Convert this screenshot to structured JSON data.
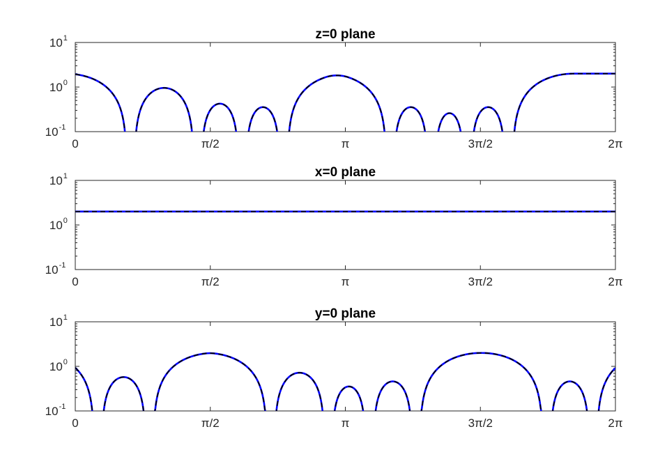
{
  "chart_data": [
    {
      "type": "line",
      "title": "z=0 plane",
      "xlim": [
        0,
        6.283185307
      ],
      "xticks": [
        0,
        1.570796327,
        3.141592654,
        4.71238898,
        6.283185307
      ],
      "xtick_labels": [
        "0",
        "π/2",
        "π",
        "3π/2",
        "2π"
      ],
      "ylim": [
        0.1,
        10
      ],
      "yscale": "log",
      "ytick_labels": [
        {
          "base": "10",
          "exp": "1"
        },
        {
          "base": "10",
          "exp": "0"
        },
        {
          "base": "10",
          "exp": "-1"
        }
      ],
      "grid": false,
      "legend": "none",
      "series": [
        {
          "style": "solid",
          "color": "#0000ff",
          "peak": 2.0,
          "zeros": [
            0.6,
            0.6855,
            1.38,
            1.465,
            1.9,
            1.985,
            2.38,
            2.465,
            3.62,
            3.705,
            4.1,
            4.185,
            4.52,
            4.605,
            5.0,
            5.085
          ]
        },
        {
          "style": "dashed",
          "color": "#000000",
          "peak": 2.0,
          "zeros": [
            0.6,
            0.6855,
            1.38,
            1.465,
            1.9,
            1.985,
            2.38,
            2.465,
            3.62,
            3.705,
            4.1,
            4.185,
            4.52,
            4.605,
            5.0,
            5.085
          ]
        }
      ]
    },
    {
      "type": "line",
      "title": "x=0 plane",
      "xlim": [
        0,
        6.283185307
      ],
      "xticks": [
        0,
        1.570796327,
        3.141592654,
        4.71238898,
        6.283185307
      ],
      "xtick_labels": [
        "0",
        "π/2",
        "π",
        "3π/2",
        "2π"
      ],
      "ylim": [
        0.1,
        10
      ],
      "yscale": "log",
      "ytick_labels": [
        {
          "base": "10",
          "exp": "1"
        },
        {
          "base": "10",
          "exp": "0"
        },
        {
          "base": "10",
          "exp": "-1"
        }
      ],
      "grid": false,
      "legend": "none",
      "series": [
        {
          "style": "solid",
          "color": "#0000ff",
          "peak": 2.0,
          "zeros": []
        },
        {
          "style": "dashed",
          "color": "#000000",
          "peak": 2.0,
          "zeros": []
        }
      ]
    },
    {
      "type": "line",
      "title": "y=0 plane",
      "xlim": [
        0,
        6.283185307
      ],
      "xticks": [
        0,
        1.570796327,
        3.141592654,
        4.71238898,
        6.283185307
      ],
      "xtick_labels": [
        "0",
        "π/2",
        "π",
        "3π/2",
        "2π"
      ],
      "ylim": [
        0.1,
        10
      ],
      "yscale": "log",
      "ytick_labels": [
        {
          "base": "10",
          "exp": "1"
        },
        {
          "base": "10",
          "exp": "0"
        },
        {
          "base": "10",
          "exp": "-1"
        }
      ],
      "grid": false,
      "legend": "none",
      "series": [
        {
          "style": "solid",
          "color": "#0000ff",
          "peak": 2.0,
          "zeros": [
            0.22,
            0.3055,
            0.82,
            0.9055,
            2.23,
            2.3155,
            2.9,
            2.9855,
            3.38,
            3.4655,
            3.92,
            4.0055,
            5.44,
            5.5255,
            5.98,
            6.0655
          ]
        },
        {
          "style": "dashed",
          "color": "#000000",
          "peak": 2.0,
          "zeros": [
            0.22,
            0.3055,
            0.82,
            0.9055,
            2.23,
            2.3155,
            2.9,
            2.9855,
            3.38,
            3.4655,
            3.92,
            4.0055,
            5.44,
            5.5255,
            5.98,
            6.0655
          ]
        }
      ]
    }
  ]
}
